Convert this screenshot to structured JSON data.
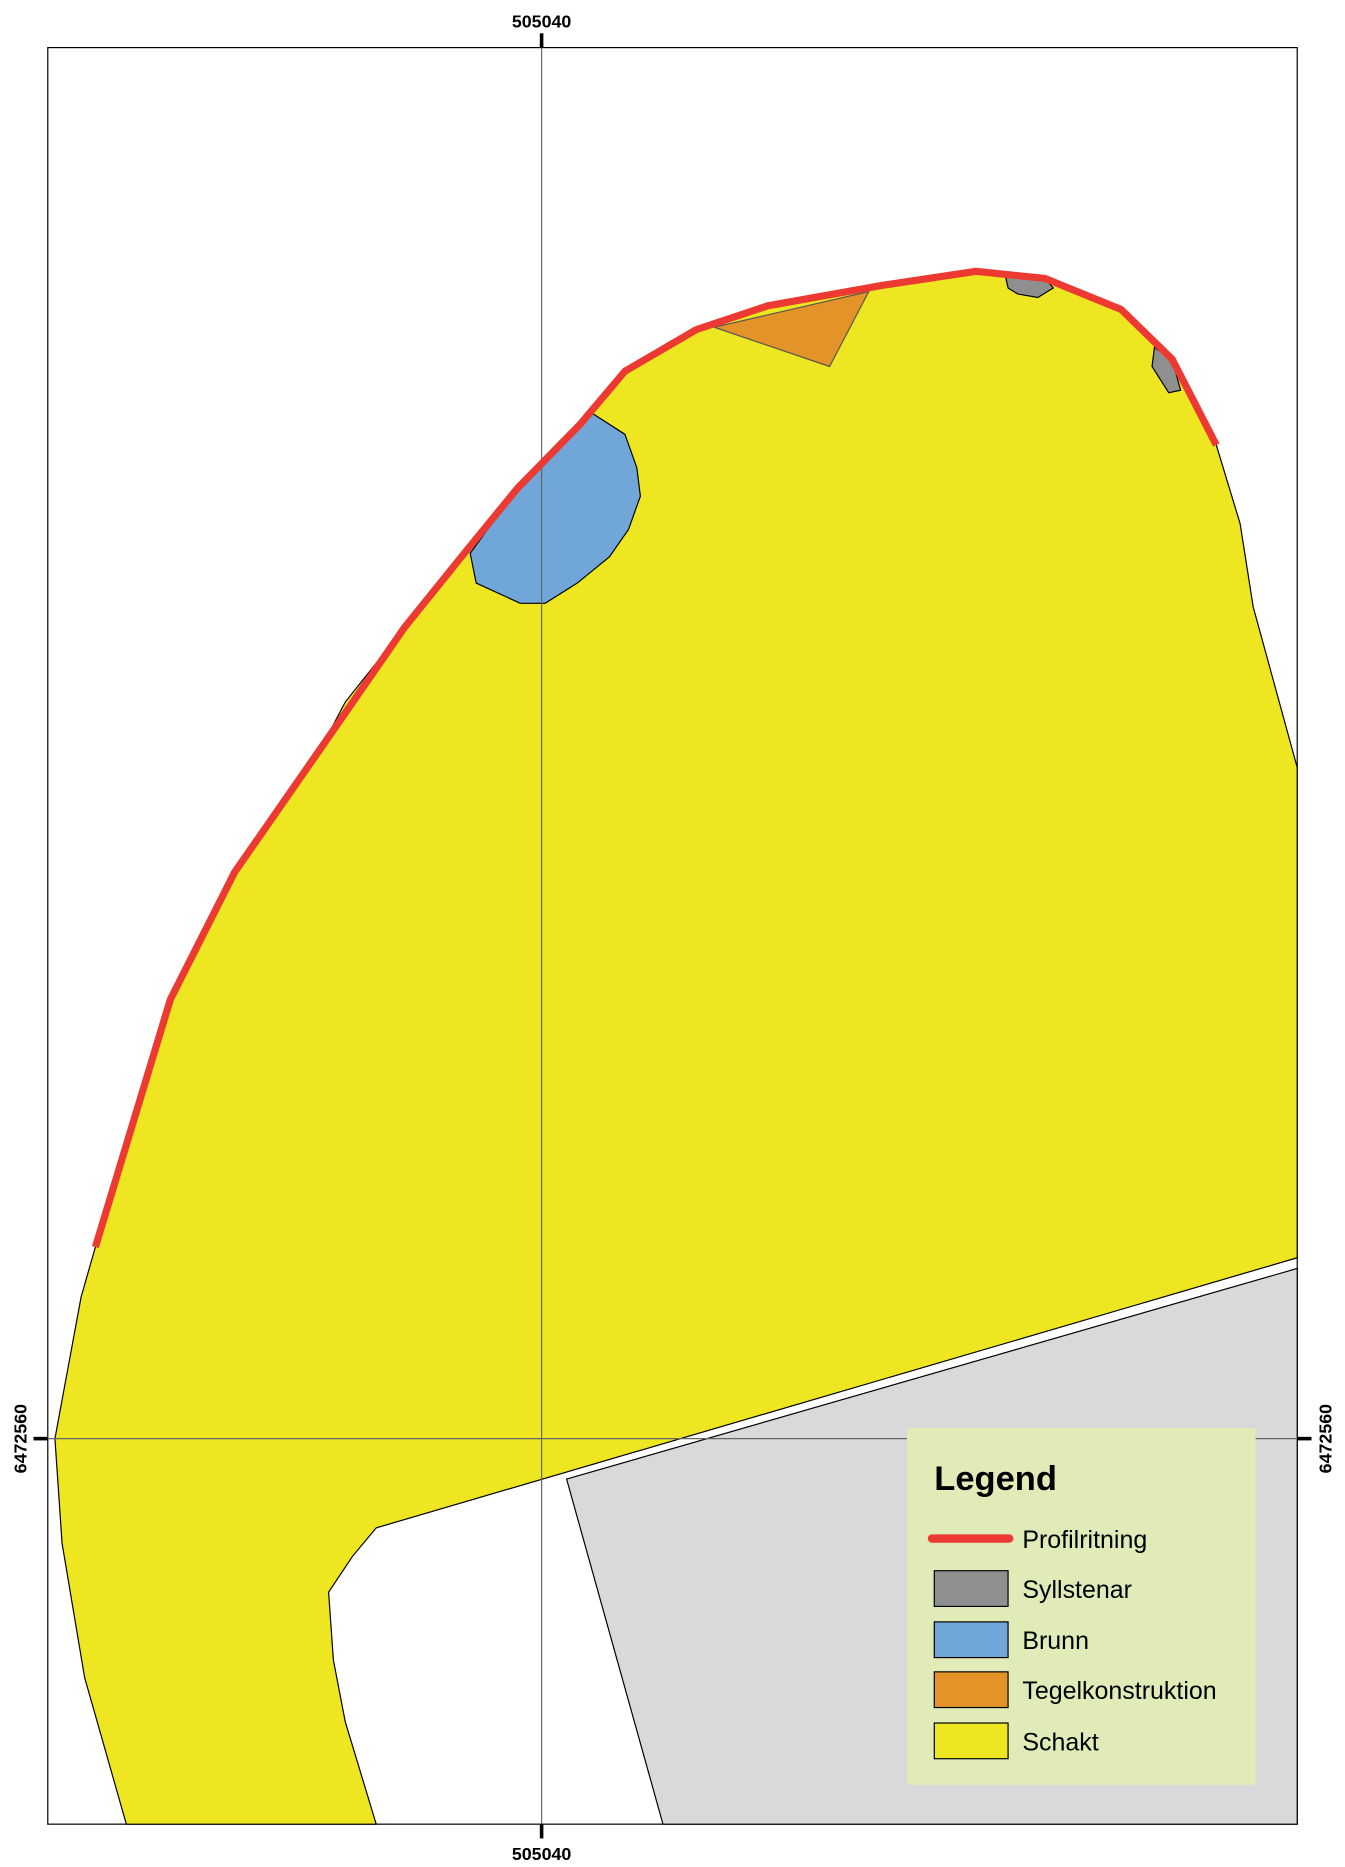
{
  "map": {
    "coordinates": {
      "top": "505040",
      "bottom": "505040",
      "left": "6472560",
      "right": "6472560"
    },
    "legend": {
      "title": "Legend",
      "items": [
        {
          "name": "Profilritning",
          "color": "#ec3a33",
          "kind": "line"
        },
        {
          "name": "Syllstenar",
          "color": "#8e9090",
          "kind": "area"
        },
        {
          "name": "Brunn",
          "color": "#70a6d8",
          "kind": "area"
        },
        {
          "name": "Tegelkonstruktion",
          "color": "#e49329",
          "kind": "area"
        },
        {
          "name": "Schakt",
          "color": "#ede620",
          "kind": "area"
        }
      ]
    }
  }
}
